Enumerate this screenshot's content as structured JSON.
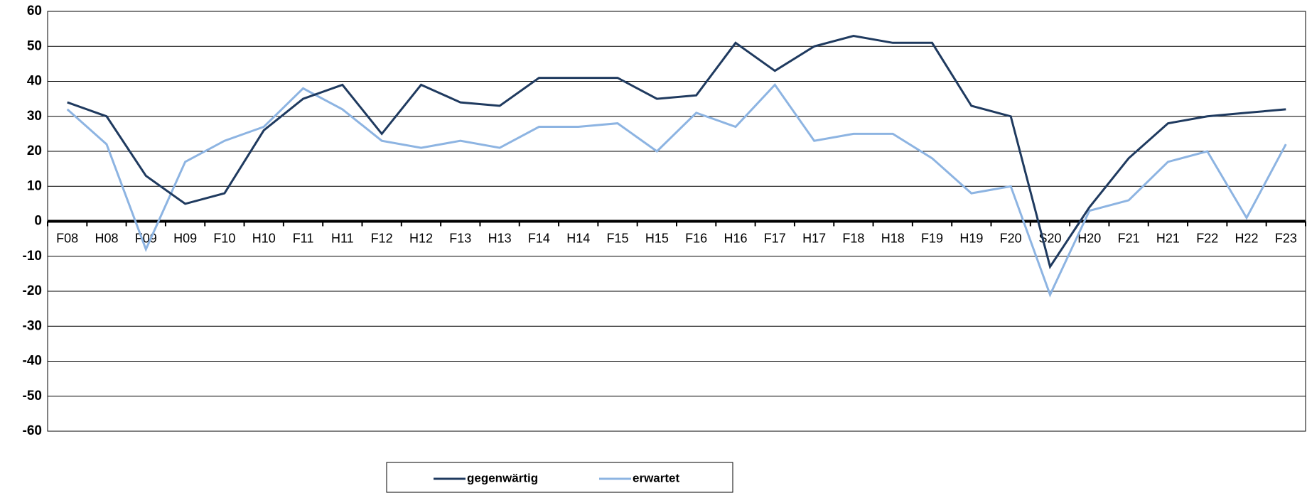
{
  "chart_data": {
    "type": "line",
    "categories": [
      "F08",
      "H08",
      "F09",
      "H09",
      "F10",
      "H10",
      "F11",
      "H11",
      "F12",
      "H12",
      "F13",
      "H13",
      "F14",
      "H14",
      "F15",
      "H15",
      "F16",
      "H16",
      "F17",
      "H17",
      "F18",
      "H18",
      "F19",
      "H19",
      "F20",
      "S20",
      "H20",
      "F21",
      "H21",
      "F22",
      "H22",
      "F23"
    ],
    "series": [
      {
        "name": "gegenwärtig",
        "color": "#1f3a5f",
        "values": [
          34,
          30,
          13,
          5,
          8,
          26,
          35,
          39,
          25,
          39,
          34,
          33,
          41,
          41,
          41,
          35,
          36,
          51,
          43,
          50,
          53,
          51,
          51,
          33,
          30,
          -13,
          4,
          18,
          28,
          30,
          31,
          32
        ]
      },
      {
        "name": "erwartet",
        "color": "#8db4e2",
        "values": [
          32,
          22,
          -8,
          17,
          23,
          27,
          38,
          32,
          23,
          21,
          23,
          21,
          27,
          27,
          28,
          20,
          31,
          27,
          39,
          23,
          25,
          25,
          18,
          8,
          10,
          -21,
          3,
          6,
          17,
          20,
          1,
          22
        ]
      }
    ],
    "ylim": [
      -60,
      60
    ],
    "yticks": [
      -60,
      -50,
      -40,
      -30,
      -20,
      -10,
      0,
      10,
      20,
      30,
      40,
      50,
      60
    ],
    "grid": true,
    "legend": "bottom"
  }
}
